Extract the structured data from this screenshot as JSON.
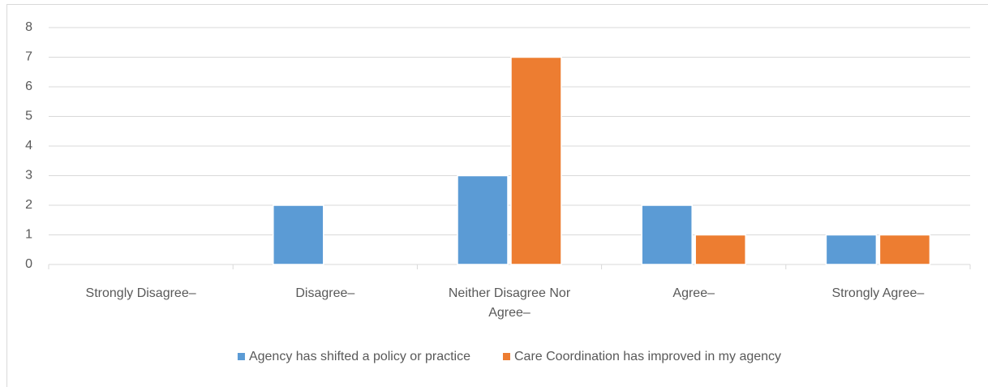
{
  "chart_data": {
    "type": "bar",
    "categories": [
      "Strongly Disagree–",
      "Disagree–",
      "Neither Disagree Nor Agree–",
      "Agree–",
      "Strongly Agree–"
    ],
    "series": [
      {
        "name": "Agency has shifted a policy or practice",
        "color": "#5b9bd5",
        "values": [
          0,
          2,
          3,
          2,
          1
        ]
      },
      {
        "name": "Care Coordination has improved in my agency",
        "color": "#ed7d31",
        "values": [
          0,
          0,
          7,
          1,
          1
        ]
      }
    ],
    "ylim": [
      0,
      8
    ],
    "yticks": [
      0,
      1,
      2,
      3,
      4,
      5,
      6,
      7,
      8
    ],
    "grid": true,
    "legend": "bottom"
  }
}
